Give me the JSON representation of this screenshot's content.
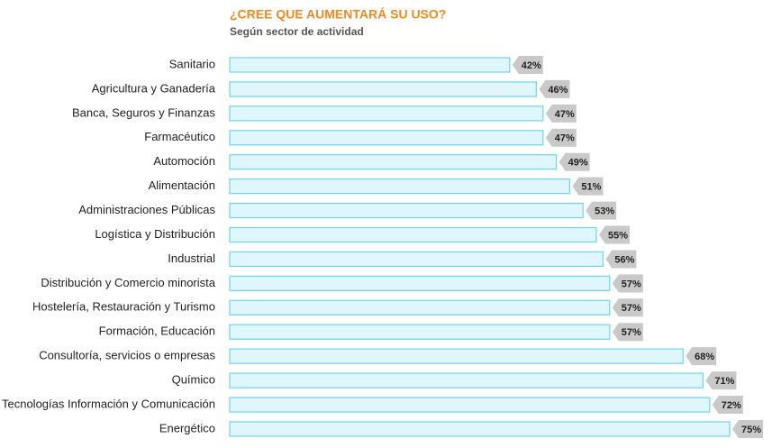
{
  "chart_data": {
    "type": "bar",
    "orientation": "horizontal",
    "title": "¿CREE QUE AUMENTARÁ SU USO?",
    "subtitle": "Según sector de actividad",
    "categories": [
      "Sanitario",
      "Agricultura y Ganadería",
      "Banca, Seguros y Finanzas",
      "Farmacéutico",
      "Automoción",
      "Alimentación",
      "Administraciones Públicas",
      "Logística y Distribución",
      "Industrial",
      "Distribución y Comercio minorista",
      "Hostelería, Restauración y Turismo",
      "Formación, Educación",
      "Consultoría, servicios o empresas",
      "Químico",
      "Tecnologías Información y Comunicación",
      "Energético"
    ],
    "values": [
      42,
      46,
      47,
      47,
      49,
      51,
      53,
      55,
      56,
      57,
      57,
      57,
      68,
      71,
      72,
      75
    ],
    "value_labels": [
      "42%",
      "46%",
      "47%",
      "47%",
      "49%",
      "51%",
      "53%",
      "55%",
      "56%",
      "57%",
      "57%",
      "57%",
      "68%",
      "71%",
      "72%",
      "75%"
    ],
    "color": "#dff6fd",
    "edge_color": "#6fd3ef",
    "title_color": "#f08a1c",
    "label_tag_color": "#c9c9c9"
  }
}
